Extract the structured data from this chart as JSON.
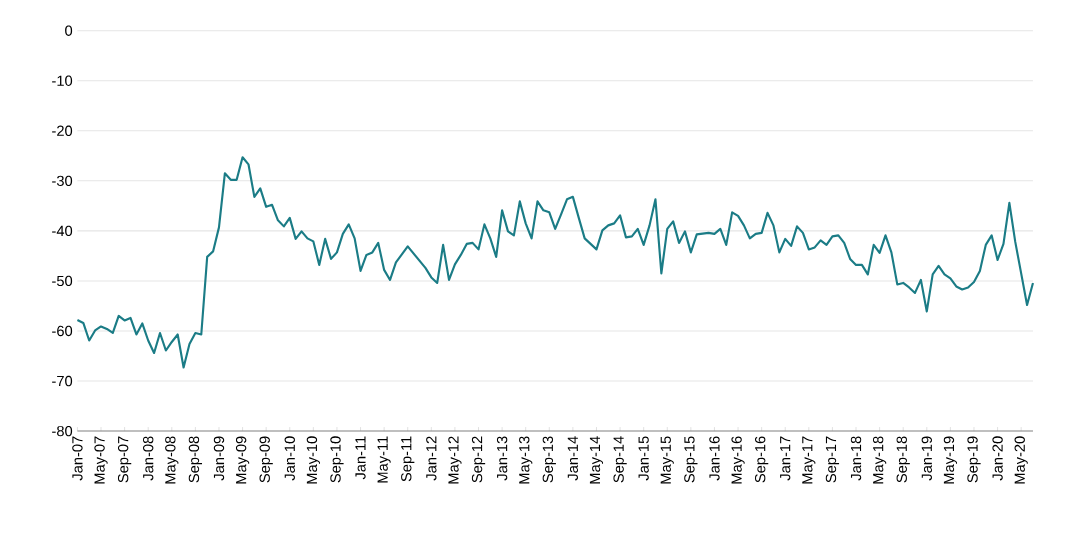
{
  "chart_data": {
    "type": "line",
    "color": "#1b7c86",
    "grid": "y",
    "marker": "none",
    "line_style": "solid",
    "x": [
      "2007-01",
      "2007-02",
      "2007-03",
      "2007-04",
      "2007-05",
      "2007-06",
      "2007-07",
      "2007-08",
      "2007-09",
      "2007-10",
      "2007-11",
      "2007-12",
      "2008-01",
      "2008-02",
      "2008-03",
      "2008-04",
      "2008-05",
      "2008-06",
      "2008-07",
      "2008-08",
      "2008-09",
      "2008-10",
      "2008-11",
      "2008-12",
      "2009-01",
      "2009-02",
      "2009-03",
      "2009-04",
      "2009-05",
      "2009-06",
      "2009-07",
      "2009-08",
      "2009-09",
      "2009-10",
      "2009-11",
      "2009-12",
      "2010-01",
      "2010-02",
      "2010-03",
      "2010-04",
      "2010-05",
      "2010-06",
      "2010-07",
      "2010-08",
      "2010-09",
      "2010-10",
      "2010-11",
      "2010-12",
      "2011-01",
      "2011-02",
      "2011-03",
      "2011-04",
      "2011-05",
      "2011-06",
      "2011-07",
      "2011-09",
      "2011-12",
      "2012-01",
      "2012-02",
      "2012-03",
      "2012-04",
      "2012-05",
      "2012-06",
      "2012-07",
      "2012-08",
      "2012-09",
      "2012-10",
      "2012-11",
      "2012-12",
      "2013-01",
      "2013-02",
      "2013-03",
      "2013-04",
      "2013-05",
      "2013-06",
      "2013-07",
      "2013-08",
      "2013-09",
      "2013-10",
      "2013-11",
      "2013-12",
      "2014-01",
      "2014-02",
      "2014-03",
      "2014-05",
      "2014-06",
      "2014-07",
      "2014-08",
      "2014-09",
      "2014-10",
      "2014-11",
      "2014-12",
      "2015-01",
      "2015-02",
      "2015-03",
      "2015-04",
      "2015-05",
      "2015-06",
      "2015-07",
      "2015-08",
      "2015-09",
      "2015-10",
      "2015-12",
      "2016-01",
      "2016-02",
      "2016-03",
      "2016-04",
      "2016-05",
      "2016-06",
      "2016-07",
      "2016-08",
      "2016-09",
      "2016-10",
      "2016-11",
      "2016-12",
      "2017-01",
      "2017-02",
      "2017-03",
      "2017-04",
      "2017-05",
      "2017-06",
      "2017-07",
      "2017-08",
      "2017-09",
      "2017-10",
      "2017-11",
      "2017-12",
      "2018-01",
      "2018-02",
      "2018-03",
      "2018-04",
      "2018-05",
      "2018-06",
      "2018-07",
      "2018-08",
      "2018-09",
      "2018-10",
      "2018-11",
      "2018-12",
      "2019-01",
      "2019-02",
      "2019-03",
      "2019-04",
      "2019-05",
      "2019-06",
      "2019-07",
      "2019-08",
      "2019-09",
      "2019-10",
      "2019-11",
      "2019-12",
      "2020-01",
      "2020-02",
      "2020-03",
      "2020-04",
      "2020-05",
      "2020-06",
      "2020-07"
    ],
    "values": [
      -57.8,
      -58.4,
      -61.9,
      -59.9,
      -59.1,
      -59.6,
      -60.4,
      -57.0,
      -57.9,
      -57.4,
      -60.7,
      -58.5,
      -61.9,
      -64.4,
      -60.4,
      -63.9,
      -62.2,
      -60.7,
      -67.3,
      -62.6,
      -60.4,
      -60.7,
      -45.2,
      -44.1,
      -39.3,
      -28.5,
      -29.8,
      -29.8,
      -25.3,
      -26.7,
      -33.2,
      -31.5,
      -35.2,
      -34.8,
      -37.9,
      -39.1,
      -37.4,
      -41.6,
      -40.1,
      -41.5,
      -42.1,
      -46.8,
      -41.6,
      -45.6,
      -44.3,
      -40.6,
      -38.7,
      -41.5,
      -48.0,
      -44.8,
      -44.3,
      -42.4,
      -47.8,
      -49.8,
      -46.3,
      -43.1,
      -47.4,
      -49.3,
      -50.4,
      -42.8,
      -49.8,
      -46.7,
      -44.8,
      -42.6,
      -42.4,
      -43.7,
      -38.7,
      -41.5,
      -45.2,
      -35.9,
      -40.1,
      -40.9,
      -34.1,
      -38.5,
      -41.5,
      -34.1,
      -35.9,
      -36.3,
      -39.6,
      -36.7,
      -33.7,
      -33.2,
      -37.4,
      -41.5,
      -43.7,
      -39.9,
      -38.9,
      -38.5,
      -36.9,
      -41.3,
      -41.1,
      -39.6,
      -42.8,
      -38.9,
      -33.7,
      -48.5,
      -39.6,
      -38.1,
      -42.4,
      -40.1,
      -44.3,
      -40.7,
      -40.4,
      -40.6,
      -39.6,
      -42.8,
      -36.3,
      -37.0,
      -38.9,
      -41.5,
      -40.6,
      -40.4,
      -36.4,
      -38.9,
      -44.3,
      -41.6,
      -43.0,
      -39.1,
      -40.4,
      -43.7,
      -43.3,
      -41.9,
      -42.8,
      -41.1,
      -40.9,
      -42.4,
      -45.6,
      -46.8,
      -46.8,
      -48.7,
      -42.8,
      -44.4,
      -40.9,
      -44.3,
      -50.7,
      -50.4,
      -51.3,
      -52.4,
      -49.8,
      -56.1,
      -48.7,
      -47.0,
      -48.7,
      -49.5,
      -51.1,
      -51.7,
      -51.3,
      -50.2,
      -48.0,
      -42.8,
      -40.9,
      -45.8,
      -42.6,
      -34.4,
      -42.2,
      -48.5,
      -54.8,
      -50.4
    ],
    "xlim": [
      "2007-01",
      "2020-07"
    ],
    "xticks": [
      {
        "value": "2007-01",
        "label": "Jan-07"
      },
      {
        "value": "2007-05",
        "label": "May-07"
      },
      {
        "value": "2007-09",
        "label": "Sep-07"
      },
      {
        "value": "2008-01",
        "label": "Jan-08"
      },
      {
        "value": "2008-05",
        "label": "May-08"
      },
      {
        "value": "2008-09",
        "label": "Sep-08"
      },
      {
        "value": "2009-01",
        "label": "Jan-09"
      },
      {
        "value": "2009-05",
        "label": "May-09"
      },
      {
        "value": "2009-09",
        "label": "Sep-09"
      },
      {
        "value": "2010-01",
        "label": "Jan-10"
      },
      {
        "value": "2010-05",
        "label": "May-10"
      },
      {
        "value": "2010-09",
        "label": "Sep-10"
      },
      {
        "value": "2011-01",
        "label": "Jan-11"
      },
      {
        "value": "2011-05",
        "label": "May-11"
      },
      {
        "value": "2011-09",
        "label": "Sep-11"
      },
      {
        "value": "2012-01",
        "label": "Jan-12"
      },
      {
        "value": "2012-05",
        "label": "May-12"
      },
      {
        "value": "2012-09",
        "label": "Sep-12"
      },
      {
        "value": "2013-01",
        "label": "Jan-13"
      },
      {
        "value": "2013-05",
        "label": "May-13"
      },
      {
        "value": "2013-09",
        "label": "Sep-13"
      },
      {
        "value": "2014-01",
        "label": "Jan-14"
      },
      {
        "value": "2014-05",
        "label": "May-14"
      },
      {
        "value": "2014-09",
        "label": "Sep-14"
      },
      {
        "value": "2015-01",
        "label": "Jan-15"
      },
      {
        "value": "2015-05",
        "label": "May-15"
      },
      {
        "value": "2015-09",
        "label": "Sep-15"
      },
      {
        "value": "2016-01",
        "label": "Jan-16"
      },
      {
        "value": "2016-05",
        "label": "May-16"
      },
      {
        "value": "2016-09",
        "label": "Sep-16"
      },
      {
        "value": "2017-01",
        "label": "Jan-17"
      },
      {
        "value": "2017-05",
        "label": "May-17"
      },
      {
        "value": "2017-09",
        "label": "Sep-17"
      },
      {
        "value": "2018-01",
        "label": "Jan-18"
      },
      {
        "value": "2018-05",
        "label": "May-18"
      },
      {
        "value": "2018-09",
        "label": "Sep-18"
      },
      {
        "value": "2019-01",
        "label": "Jan-19"
      },
      {
        "value": "2019-05",
        "label": "May-19"
      },
      {
        "value": "2019-09",
        "label": "Sep-19"
      },
      {
        "value": "2020-01",
        "label": "Jan-20"
      },
      {
        "value": "2020-05",
        "label": "May-20"
      }
    ],
    "ylim": [
      -80,
      0
    ],
    "yticks": [
      -80,
      -70,
      -60,
      -50,
      -40,
      -30,
      -20,
      -10,
      0
    ]
  }
}
